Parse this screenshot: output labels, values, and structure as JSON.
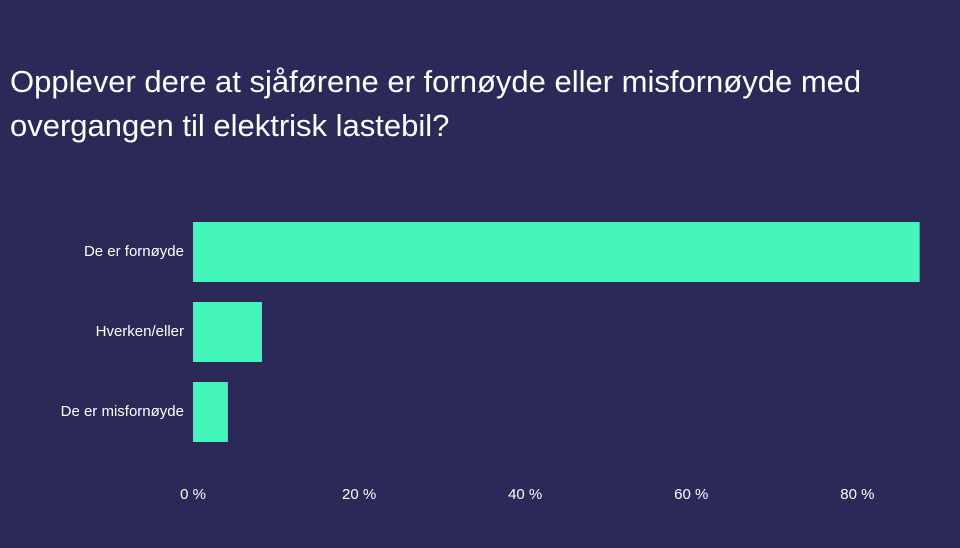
{
  "chart_data": {
    "type": "barh",
    "title": "Opplever dere at sjåførene er fornøyde eller misfornøyde med overgangen til elektrisk lastebil?",
    "categories": [
      "De er fornøyde",
      "Hverken/eller",
      "De er misfornøyde"
    ],
    "values": [
      87.5,
      8.3,
      4.2
    ],
    "color": "#45f6ba",
    "xlim": [
      0,
      92
    ],
    "xticks": [
      {
        "value": 0,
        "label": "0 %"
      },
      {
        "value": 20,
        "label": "20 %"
      },
      {
        "value": 40,
        "label": "40 %"
      },
      {
        "value": 60,
        "label": "60 %"
      },
      {
        "value": 80,
        "label": "80 %"
      }
    ],
    "grid": false
  }
}
